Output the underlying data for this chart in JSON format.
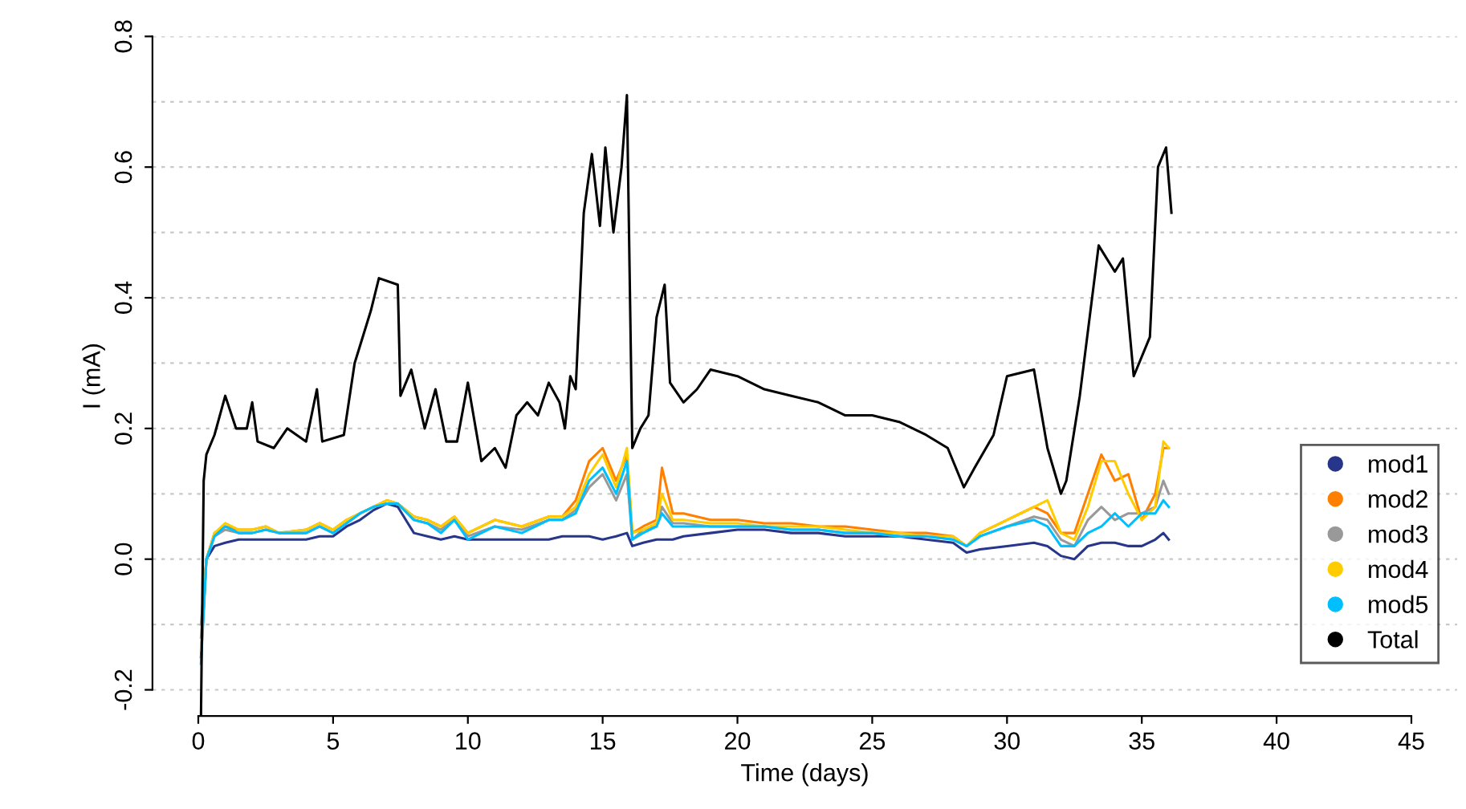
{
  "chart_data": {
    "type": "line",
    "xlabel": "Time (days)",
    "ylabel": "I (mA)",
    "xlim": [
      -1.7,
      46.7
    ],
    "ylim": [
      -0.24,
      0.8
    ],
    "xticks": [
      0,
      5,
      10,
      15,
      20,
      25,
      30,
      35,
      40,
      45
    ],
    "yticks": [
      {
        "value": -0.2,
        "label": "-0.2"
      },
      {
        "value": -0.1,
        "label": null
      },
      {
        "value": 0.0,
        "label": "0.0"
      },
      {
        "value": 0.1,
        "label": null
      },
      {
        "value": 0.2,
        "label": "0.2"
      },
      {
        "value": 0.3,
        "label": null
      },
      {
        "value": 0.4,
        "label": "0.4"
      },
      {
        "value": 0.5,
        "label": null
      },
      {
        "value": 0.6,
        "label": "0.6"
      },
      {
        "value": 0.7,
        "label": null
      },
      {
        "value": 0.8,
        "label": "0.8"
      }
    ],
    "grid": "y",
    "legend": "bottom right",
    "x": [
      0.1,
      0.3,
      0.6,
      1,
      1.5,
      2,
      2.5,
      3,
      4,
      4.5,
      5,
      5.5,
      6,
      6.5,
      7,
      7.4,
      8,
      8.5,
      9,
      9.5,
      10,
      11,
      12,
      13,
      13.5,
      14,
      14.5,
      15,
      15.5,
      15.9,
      16.1,
      16.5,
      17,
      17.2,
      17.6,
      18,
      19,
      20,
      21,
      22,
      23,
      24,
      25,
      26,
      27,
      28,
      28.5,
      29,
      30,
      31,
      31.5,
      32,
      32.5,
      33,
      33.5,
      34,
      34.5,
      35,
      35.5,
      35.8,
      36
    ],
    "series": [
      {
        "name": "mod1",
        "color": "#27358a",
        "values": [
          -0.15,
          0.0,
          0.02,
          0.025,
          0.03,
          0.03,
          0.03,
          0.03,
          0.03,
          0.035,
          0.035,
          0.05,
          0.06,
          0.075,
          0.085,
          0.08,
          0.04,
          0.035,
          0.03,
          0.035,
          0.03,
          0.03,
          0.03,
          0.03,
          0.035,
          0.035,
          0.035,
          0.03,
          0.035,
          0.04,
          0.02,
          0.025,
          0.03,
          0.03,
          0.03,
          0.035,
          0.04,
          0.045,
          0.045,
          0.04,
          0.04,
          0.035,
          0.035,
          0.035,
          0.03,
          0.025,
          0.01,
          0.015,
          0.02,
          0.025,
          0.02,
          0.005,
          0.0,
          0.02,
          0.025,
          0.025,
          0.02,
          0.02,
          0.03,
          0.04,
          0.03
        ]
      },
      {
        "name": "mod2",
        "color": "#ff8000",
        "values": [
          -0.12,
          0.0,
          0.04,
          0.05,
          0.045,
          0.045,
          0.05,
          0.04,
          0.045,
          0.055,
          0.045,
          0.06,
          0.07,
          0.08,
          0.09,
          0.085,
          0.065,
          0.06,
          0.05,
          0.065,
          0.04,
          0.06,
          0.05,
          0.065,
          0.065,
          0.09,
          0.15,
          0.17,
          0.12,
          0.16,
          0.04,
          0.05,
          0.06,
          0.14,
          0.07,
          0.07,
          0.06,
          0.06,
          0.055,
          0.055,
          0.05,
          0.05,
          0.045,
          0.04,
          0.04,
          0.035,
          0.02,
          0.04,
          0.06,
          0.08,
          0.07,
          0.04,
          0.04,
          0.1,
          0.16,
          0.12,
          0.13,
          0.06,
          0.1,
          0.17,
          0.17
        ]
      },
      {
        "name": "mod3",
        "color": "#999999",
        "values": [
          -0.1,
          0.0,
          0.035,
          0.045,
          0.04,
          0.04,
          0.045,
          0.04,
          0.04,
          0.05,
          0.04,
          0.055,
          0.07,
          0.08,
          0.085,
          0.085,
          0.06,
          0.055,
          0.045,
          0.06,
          0.035,
          0.05,
          0.045,
          0.06,
          0.06,
          0.075,
          0.11,
          0.13,
          0.09,
          0.13,
          0.03,
          0.045,
          0.05,
          0.08,
          0.055,
          0.055,
          0.05,
          0.05,
          0.05,
          0.045,
          0.045,
          0.04,
          0.04,
          0.035,
          0.035,
          0.03,
          0.02,
          0.035,
          0.05,
          0.065,
          0.06,
          0.03,
          0.02,
          0.06,
          0.08,
          0.06,
          0.07,
          0.07,
          0.08,
          0.12,
          0.1
        ]
      },
      {
        "name": "mod4",
        "color": "#ffcc00",
        "values": [
          -0.14,
          0.0,
          0.04,
          0.055,
          0.045,
          0.045,
          0.05,
          0.04,
          0.045,
          0.055,
          0.045,
          0.06,
          0.07,
          0.08,
          0.09,
          0.085,
          0.065,
          0.06,
          0.05,
          0.065,
          0.04,
          0.06,
          0.05,
          0.065,
          0.065,
          0.08,
          0.13,
          0.16,
          0.11,
          0.17,
          0.04,
          0.045,
          0.055,
          0.1,
          0.06,
          0.06,
          0.055,
          0.055,
          0.05,
          0.05,
          0.05,
          0.045,
          0.04,
          0.04,
          0.035,
          0.035,
          0.02,
          0.04,
          0.06,
          0.08,
          0.09,
          0.04,
          0.03,
          0.08,
          0.15,
          0.15,
          0.1,
          0.06,
          0.08,
          0.18,
          0.17
        ]
      },
      {
        "name": "mod5",
        "color": "#00bfff",
        "values": [
          -0.16,
          0.0,
          0.035,
          0.05,
          0.04,
          0.04,
          0.045,
          0.04,
          0.04,
          0.05,
          0.04,
          0.055,
          0.07,
          0.08,
          0.085,
          0.085,
          0.06,
          0.055,
          0.04,
          0.06,
          0.03,
          0.05,
          0.04,
          0.06,
          0.06,
          0.07,
          0.12,
          0.14,
          0.1,
          0.15,
          0.03,
          0.04,
          0.05,
          0.07,
          0.05,
          0.05,
          0.05,
          0.05,
          0.05,
          0.045,
          0.045,
          0.04,
          0.04,
          0.035,
          0.035,
          0.03,
          0.02,
          0.035,
          0.05,
          0.06,
          0.05,
          0.02,
          0.02,
          0.04,
          0.05,
          0.07,
          0.05,
          0.07,
          0.07,
          0.09,
          0.08
        ]
      },
      {
        "name": "Total",
        "color": "#000000",
        "x": [
          0.1,
          0.2,
          0.3,
          0.6,
          1.0,
          1.4,
          1.8,
          2.0,
          2.2,
          2.8,
          3.3,
          4.0,
          4.4,
          4.6,
          5.4,
          5.8,
          6.4,
          6.7,
          7.4,
          7.5,
          7.9,
          8.4,
          8.8,
          9.2,
          9.6,
          10.0,
          10.5,
          11.0,
          11.4,
          11.8,
          12.2,
          12.6,
          13.0,
          13.4,
          13.6,
          13.8,
          14.0,
          14.3,
          14.6,
          14.9,
          15.1,
          15.4,
          15.7,
          15.9,
          16.1,
          16.4,
          16.7,
          17.0,
          17.3,
          17.5,
          18,
          18.5,
          19,
          20,
          21,
          22,
          23,
          24,
          25,
          26,
          27,
          27.8,
          28.4,
          28.8,
          29.5,
          30,
          31,
          31.5,
          32,
          32.2,
          32.7,
          33.4,
          34,
          34.3,
          34.7,
          35.3,
          35.6,
          35.9,
          36.1
        ],
        "values": [
          -0.24,
          0.12,
          0.16,
          0.19,
          0.25,
          0.2,
          0.2,
          0.24,
          0.18,
          0.17,
          0.2,
          0.18,
          0.26,
          0.18,
          0.19,
          0.3,
          0.38,
          0.43,
          0.42,
          0.25,
          0.29,
          0.2,
          0.26,
          0.18,
          0.18,
          0.27,
          0.15,
          0.17,
          0.14,
          0.22,
          0.24,
          0.22,
          0.27,
          0.24,
          0.2,
          0.28,
          0.26,
          0.53,
          0.62,
          0.51,
          0.63,
          0.5,
          0.6,
          0.71,
          0.17,
          0.2,
          0.22,
          0.37,
          0.42,
          0.27,
          0.24,
          0.26,
          0.29,
          0.28,
          0.26,
          0.25,
          0.24,
          0.22,
          0.22,
          0.21,
          0.19,
          0.17,
          0.11,
          0.14,
          0.19,
          0.28,
          0.29,
          0.17,
          0.1,
          0.12,
          0.25,
          0.48,
          0.44,
          0.46,
          0.28,
          0.34,
          0.6,
          0.63,
          0.53
        ]
      }
    ]
  }
}
